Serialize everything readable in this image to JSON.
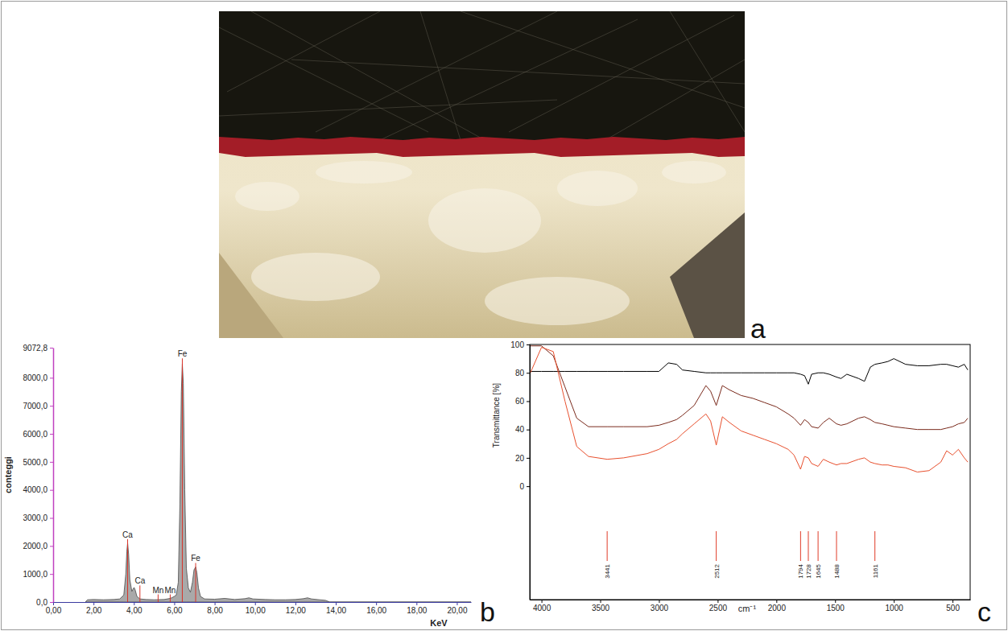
{
  "image": {
    "panel_label": "a"
  },
  "chart_data": [
    {
      "type": "area",
      "panel_label": "b",
      "x_label": "KeV",
      "y_label": "conteggi",
      "color": "#a9a9a9",
      "x": [
        1.6,
        1.7,
        2.0,
        2.5,
        3.0,
        3.3,
        3.5,
        3.6,
        3.65,
        3.69,
        3.74,
        3.8,
        3.9,
        3.95,
        4.01,
        4.07,
        4.15,
        4.3,
        4.6,
        5.0,
        5.5,
        5.8,
        5.9,
        6.0,
        6.1,
        6.2,
        6.28,
        6.35,
        6.4,
        6.45,
        6.52,
        6.6,
        6.7,
        6.8,
        6.9,
        6.98,
        7.06,
        7.12,
        7.2,
        7.3,
        7.5,
        8.0,
        8.5,
        9.0,
        9.5,
        9.7,
        9.9,
        10.5,
        11.0,
        11.5,
        12.0,
        12.4,
        12.6,
        12.8,
        13.2,
        13.5,
        13.7,
        14.0,
        16.0,
        18.0,
        20.0,
        20.7
      ],
      "values": [
        0,
        80,
        90,
        80,
        90,
        110,
        250,
        1000,
        1800,
        2100,
        1700,
        800,
        380,
        450,
        520,
        420,
        200,
        110,
        90,
        80,
        90,
        130,
        160,
        200,
        250,
        700,
        3500,
        7500,
        8500,
        7800,
        4000,
        1200,
        500,
        350,
        700,
        1150,
        1250,
        1050,
        500,
        200,
        110,
        100,
        130,
        90,
        120,
        150,
        110,
        90,
        80,
        80,
        90,
        120,
        150,
        110,
        80,
        60,
        0,
        0,
        0,
        0,
        0,
        0
      ],
      "xlim": [
        0,
        20.7
      ],
      "xticks": [
        {
          "value": 0,
          "label": "0,00"
        },
        {
          "value": 2,
          "label": "2,00"
        },
        {
          "value": 4,
          "label": "4,00"
        },
        {
          "value": 6,
          "label": "6,00"
        },
        {
          "value": 8,
          "label": "8,00"
        },
        {
          "value": 10,
          "label": "10,00"
        },
        {
          "value": 12,
          "label": "12,00"
        },
        {
          "value": 14,
          "label": "14,00"
        },
        {
          "value": 16,
          "label": "16,00"
        },
        {
          "value": 18,
          "label": "18,00"
        },
        {
          "value": 20,
          "label": "20,00"
        }
      ],
      "ylim": [
        0,
        9072.8
      ],
      "yticks": [
        {
          "value": 0,
          "label": "0,0"
        },
        {
          "value": 1000,
          "label": "1000,0"
        },
        {
          "value": 2000,
          "label": "2000,0"
        },
        {
          "value": 3000,
          "label": "3000,0"
        },
        {
          "value": 4000,
          "label": "4000,0"
        },
        {
          "value": 5000,
          "label": "5000,0"
        },
        {
          "value": 6000,
          "label": "6000,0"
        },
        {
          "value": 7000,
          "label": "7000,0"
        },
        {
          "value": 8000,
          "label": "8000,0"
        },
        {
          "value": 9072.8,
          "label": "9072,8"
        }
      ],
      "annotations": [
        {
          "text": "Ca",
          "x": 3.69,
          "y": 2300
        },
        {
          "text": "Ca",
          "x": 4.3,
          "y": 650
        },
        {
          "text": "Mn",
          "x": 5.2,
          "y": 330
        },
        {
          "text": "Mn",
          "x": 5.8,
          "y": 330
        },
        {
          "text": "Fe",
          "x": 6.4,
          "y": 8750
        },
        {
          "text": "Fe",
          "x": 7.06,
          "y": 1450
        }
      ]
    },
    {
      "type": "line",
      "panel_label": "c",
      "x_label": "cm⁻¹",
      "y_label": "Transmittance [%]",
      "x": [
        4100,
        4000,
        3900,
        3800,
        3700,
        3600,
        3441,
        3300,
        3100,
        3000,
        2920,
        2850,
        2800,
        2700,
        2600,
        2560,
        2512,
        2460,
        2400,
        2300,
        2200,
        2100,
        2000,
        1900,
        1850,
        1794,
        1760,
        1728,
        1700,
        1645,
        1600,
        1550,
        1488,
        1450,
        1400,
        1300,
        1250,
        1200,
        1161,
        1100,
        1050,
        1000,
        900,
        800,
        700,
        600,
        550,
        500,
        450,
        400,
        370
      ],
      "series": [
        {
          "color": "#000000",
          "values": [
            81,
            81,
            81,
            81,
            81,
            81,
            81,
            81,
            81,
            81,
            87,
            86,
            82,
            81,
            80,
            80,
            80,
            80,
            80,
            80,
            80,
            80,
            80,
            80,
            80,
            79,
            78,
            72,
            79,
            80,
            80,
            79,
            77,
            76,
            79,
            76,
            74,
            84,
            86,
            87,
            88,
            90,
            86,
            85,
            85,
            86,
            86,
            85,
            84,
            86,
            82
          ]
        },
        {
          "color": "#7a2a1c",
          "values": [
            99,
            99,
            92,
            70,
            48,
            42,
            42,
            42,
            42,
            43,
            45,
            47,
            50,
            57,
            71,
            67,
            57,
            71,
            68,
            64,
            62,
            59,
            56,
            51,
            48,
            43,
            47,
            45,
            42,
            41,
            45,
            48,
            44,
            43,
            44,
            48,
            49,
            47,
            45,
            44,
            43,
            42,
            41,
            40,
            40,
            40,
            41,
            42,
            44,
            45,
            48
          ]
        },
        {
          "color": "#e8502e",
          "values": [
            79,
            98,
            95,
            60,
            28,
            21,
            19,
            20,
            23,
            26,
            30,
            33,
            37,
            44,
            51,
            46,
            29,
            49,
            45,
            39,
            36,
            33,
            30,
            26,
            22,
            12,
            21,
            20,
            16,
            14,
            19,
            17,
            15,
            16,
            16,
            19,
            20,
            17,
            16,
            15,
            15,
            14,
            13,
            10,
            11,
            17,
            25,
            22,
            26,
            20,
            17
          ]
        }
      ],
      "xlim": [
        4100,
        350
      ],
      "xticks": [
        4000,
        3500,
        3000,
        2500,
        2000,
        1500,
        1000,
        500
      ],
      "ylim": [
        -80,
        100
      ],
      "yticks": [
        0,
        20,
        40,
        60,
        80,
        100
      ],
      "peaks": [
        3441,
        2512,
        1794,
        1728,
        1645,
        1488,
        1161
      ]
    }
  ]
}
